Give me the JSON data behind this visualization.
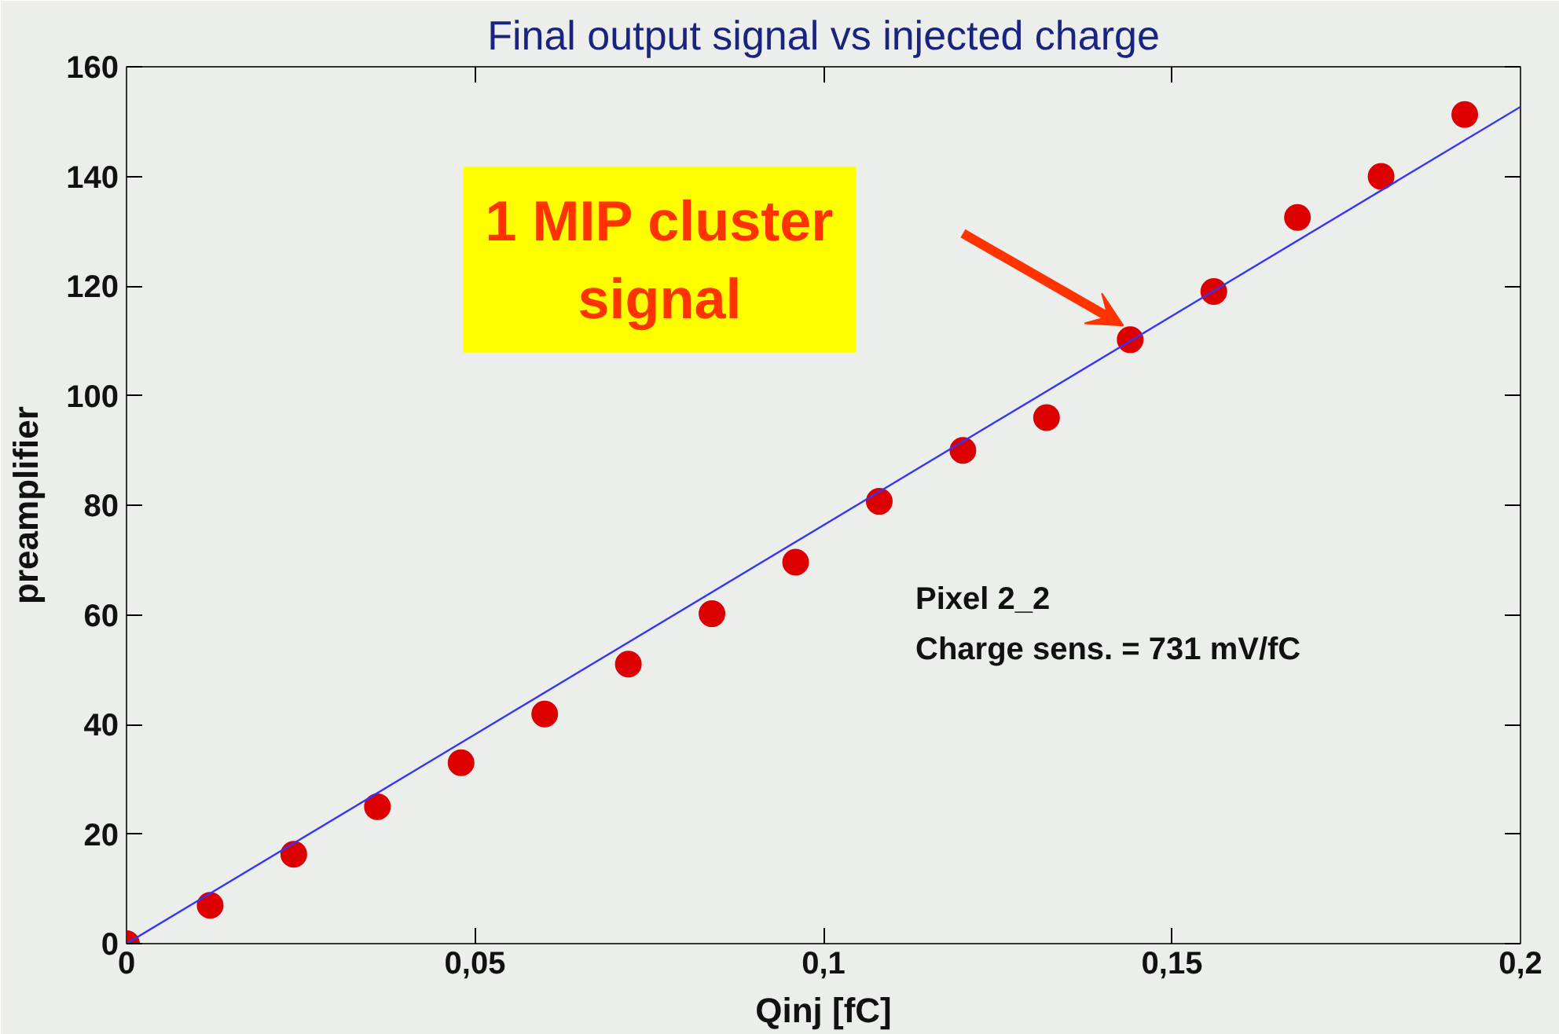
{
  "chart_data": {
    "type": "scatter",
    "title": "Final output signal vs injected charge",
    "xlabel": "Qinj [fC]",
    "ylabel": "preamplifier",
    "x": [
      0,
      0.012,
      0.024,
      0.036,
      0.048,
      0.06,
      0.072,
      0.084,
      0.096,
      0.108,
      0.12,
      0.132,
      0.144,
      0.156,
      0.168,
      0.18,
      0.192
    ],
    "series": [
      {
        "color": "#dd0000",
        "marker": "circle",
        "values": [
          0,
          7,
          16.3,
          25,
          33,
          41.9,
          51,
          60.2,
          69.6,
          80.7,
          90,
          96,
          110.2,
          119,
          132.5,
          140,
          151.3
        ]
      },
      {
        "type": "line",
        "color": "#3333ff",
        "marker": "none",
        "line_style": "solid",
        "x": [
          0,
          0.2
        ],
        "values": [
          0,
          152.7
        ]
      }
    ],
    "xlim": [
      0,
      0.2
    ],
    "xticks": [
      0,
      {
        "value": 0.05,
        "label": "0,05"
      },
      {
        "value": 0.1,
        "label": "0,1"
      },
      {
        "value": 0.15,
        "label": "0,15"
      },
      {
        "value": 0.2,
        "label": "0,2"
      }
    ],
    "ylim": [
      0,
      160
    ],
    "yticks": [
      0,
      20,
      40,
      60,
      80,
      100,
      120,
      140,
      160
    ],
    "grid": false,
    "annotations": [
      "1 MIP cluster\nsignal",
      "Pixel 2_2",
      "Charge sens. = 731 mV/fC"
    ]
  }
}
